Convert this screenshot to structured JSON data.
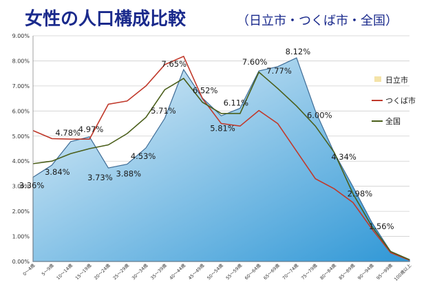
{
  "chart_data": {
    "type": "area",
    "title": "女性の人口構成比較",
    "subtitle": "（日立市・つくば市・全国）",
    "ylim": [
      0,
      9
    ],
    "yticks": [
      "0.00%",
      "1.00%",
      "2.00%",
      "3.00%",
      "4.00%",
      "5.00%",
      "6.00%",
      "7.00%",
      "8.00%",
      "9.00%"
    ],
    "grid": true,
    "legend_position": "right",
    "categories": [
      "0〜4歳",
      "5〜9歳",
      "10〜14歳",
      "15〜19歳",
      "20〜24歳",
      "25〜29歳",
      "30〜34歳",
      "35〜39歳",
      "40〜44歳",
      "45〜49歳",
      "50〜54歳",
      "55〜59歳",
      "60〜64歳",
      "65〜69歳",
      "70〜74歳",
      "75〜79歳",
      "80〜84歳",
      "85〜89歳",
      "90〜94歳",
      "95〜99歳",
      "100歳以上"
    ],
    "series": [
      {
        "name": "日立市",
        "style": "area",
        "values": [
          3.36,
          3.84,
          4.78,
          4.97,
          3.73,
          3.88,
          4.53,
          5.71,
          7.65,
          6.52,
          5.81,
          6.11,
          7.6,
          7.77,
          8.12,
          6.0,
          4.34,
          2.98,
          1.56,
          0.4,
          0.08
        ],
        "labels": [
          "3.36%",
          "3.84%",
          "4.78%",
          "4.97%",
          "3.73%",
          "3.88%",
          "4.53%",
          "5.71%",
          "7.65%",
          "6.52%",
          "5.81%",
          "6.11%",
          "7.60%",
          "7.77%",
          "8.12%",
          "6.00%",
          "4.34%",
          "2.98%",
          "1.56%",
          "",
          ""
        ]
      },
      {
        "name": "つくば市",
        "style": "line",
        "color": "#c0392b",
        "values": [
          5.22,
          4.9,
          4.88,
          4.88,
          6.27,
          6.4,
          7.0,
          7.85,
          8.18,
          6.5,
          5.5,
          5.4,
          6.02,
          5.5,
          4.4,
          3.3,
          2.9,
          2.35,
          1.3,
          0.35,
          0.05
        ]
      },
      {
        "name": "全国",
        "style": "line",
        "color": "#4a5e1a",
        "values": [
          3.9,
          4.0,
          4.3,
          4.5,
          4.65,
          5.1,
          5.75,
          6.85,
          7.3,
          6.35,
          5.9,
          5.9,
          7.55,
          6.9,
          6.2,
          5.4,
          4.35,
          2.7,
          1.4,
          0.4,
          0.07
        ]
      }
    ],
    "colors": {
      "area_top": "#e6f2f9",
      "area_bottom": "#2f97d6",
      "area_stroke": "#3d6b95",
      "title": "#1a2a8c",
      "grid": "#cfcfcf",
      "legend_area_swatch": "#f4e3a8"
    }
  }
}
